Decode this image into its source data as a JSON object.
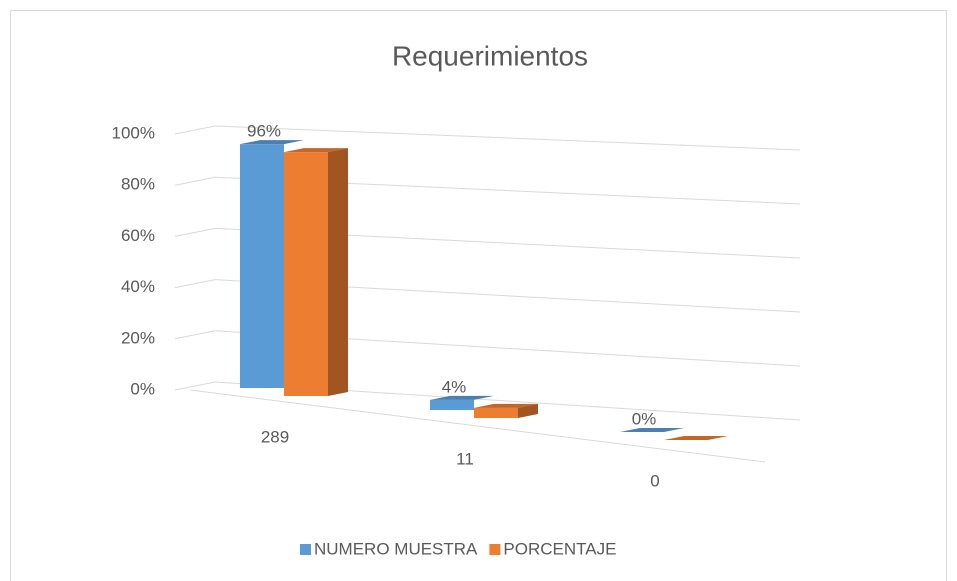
{
  "chart_data": {
    "type": "bar3d",
    "title": "Requerimientos",
    "categories": [
      "289",
      "11",
      "0"
    ],
    "series": [
      {
        "name": "NUMERO MUESTRA",
        "color": "#5b9bd5",
        "values": [
          96,
          4,
          0
        ]
      },
      {
        "name": "PORCENTAJE",
        "color": "#ed7d31",
        "values": [
          96,
          4,
          0
        ],
        "value_labels": [
          "96%",
          "4%",
          "0%"
        ]
      }
    ],
    "ylim": [
      0,
      100
    ],
    "yticks": [
      {
        "value": 0,
        "label": "0%"
      },
      {
        "value": 20,
        "label": "20%"
      },
      {
        "value": 40,
        "label": "40%"
      },
      {
        "value": 60,
        "label": "60%"
      },
      {
        "value": 80,
        "label": "80%"
      },
      {
        "value": 100,
        "label": "100%"
      }
    ],
    "grid": true,
    "legend": "bottom"
  }
}
